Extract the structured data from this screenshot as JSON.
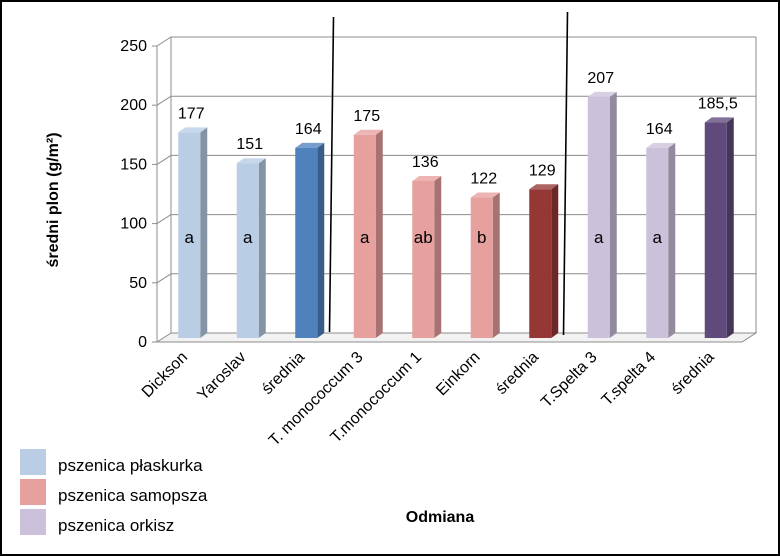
{
  "chart_data": {
    "type": "bar",
    "xlabel": "Odmiana",
    "ylabel": "średni plon (g/m²)",
    "ylim": [
      0,
      250
    ],
    "yticks": [
      "0",
      "50",
      "100",
      "150",
      "200",
      "250"
    ],
    "grid": true,
    "style": "3d-columns",
    "categories": [
      "Dickson",
      "Yaroslav",
      "średnia",
      "T. monococcum 3",
      "T.monococcum 1",
      "Einkorn",
      "średnia",
      "T.Spelta 3",
      "T.spelta 4",
      "średnia"
    ],
    "values": [
      177,
      151,
      164,
      175,
      136,
      122,
      129,
      207,
      164,
      185.5
    ],
    "data_labels": [
      "177",
      "151",
      "164",
      "175",
      "136",
      "122",
      "129",
      "207",
      "164",
      "185,5"
    ],
    "letters": [
      "a",
      "a",
      "",
      "a",
      "ab",
      "b",
      "",
      "a",
      "a",
      ""
    ],
    "colors": [
      "#b9cde5",
      "#b9cde5",
      "#4f81bd",
      "#e6a09e",
      "#e6a09e",
      "#e6a09e",
      "#953735",
      "#ccc1da",
      "#ccc1da",
      "#604a7b"
    ],
    "legend": {
      "placement": "bottom-left",
      "entries": [
        {
          "label": "pszenica płaskurka",
          "color": "#b9cde5"
        },
        {
          "label": "pszenica samopsza",
          "color": "#e6a09e"
        },
        {
          "label": "pszenica orkisz",
          "color": "#ccc1da"
        }
      ]
    }
  }
}
